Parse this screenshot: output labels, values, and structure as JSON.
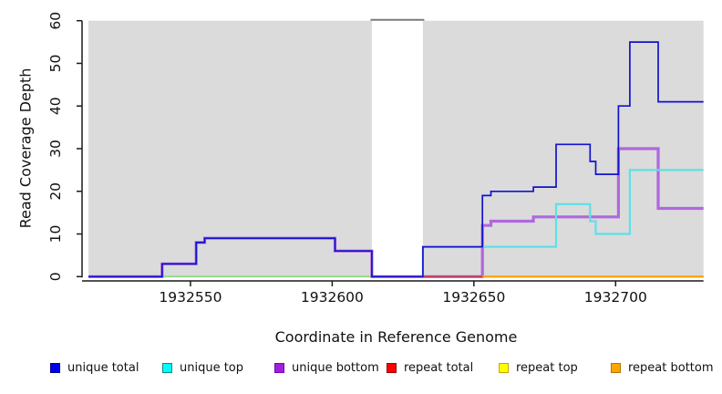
{
  "chart_data": {
    "type": "line",
    "line_style": "step-after",
    "xlabel": "Coordinate in Reference Genome",
    "ylabel": "Read Coverage Depth",
    "xlim": [
      1932514,
      1932731
    ],
    "ylim": [
      0,
      60
    ],
    "xticks": [
      1932550,
      1932600,
      1932650,
      1932700
    ],
    "yticks": [
      0,
      10,
      20,
      30,
      40,
      50,
      60
    ],
    "grid": false,
    "legend_position": "bottom",
    "plot_background": "#dbdbdb",
    "plot_regions": [
      {
        "x0": 1932514,
        "x1": 1932614
      },
      {
        "x0": 1932632,
        "x1": 1932731
      }
    ],
    "masked_region": {
      "x0": 1932614,
      "x1": 1932632,
      "fill": "#ffffff",
      "cap_color": "#7a7a7a"
    },
    "series": [
      {
        "name": "unique total",
        "color": "#1212cd",
        "points": [
          [
            1932514,
            0
          ],
          [
            1932540,
            3
          ],
          [
            1932552,
            8
          ],
          [
            1932555,
            9
          ],
          [
            1932601,
            6
          ],
          [
            1932614,
            0
          ],
          [
            1932632,
            7
          ],
          [
            1932653,
            19
          ],
          [
            1932656,
            20
          ],
          [
            1932671,
            21
          ],
          [
            1932679,
            31
          ],
          [
            1932691,
            27
          ],
          [
            1932693,
            24
          ],
          [
            1932701,
            40
          ],
          [
            1932705,
            55
          ],
          [
            1932715,
            41
          ],
          [
            1932731,
            41
          ]
        ]
      },
      {
        "name": "unique top",
        "color": "#5ee0e6",
        "points": [
          [
            1932514,
            0
          ],
          [
            1932632,
            7
          ],
          [
            1932679,
            17
          ],
          [
            1932691,
            13
          ],
          [
            1932693,
            10
          ],
          [
            1932705,
            25
          ],
          [
            1932731,
            25
          ]
        ]
      },
      {
        "name": "unique bottom",
        "color": "#b167dd",
        "points": [
          [
            1932514,
            0
          ],
          [
            1932540,
            3
          ],
          [
            1932552,
            8
          ],
          [
            1932555,
            9
          ],
          [
            1932601,
            6
          ],
          [
            1932614,
            0
          ],
          [
            1932653,
            12
          ],
          [
            1932656,
            13
          ],
          [
            1932671,
            14
          ],
          [
            1932701,
            30
          ],
          [
            1932715,
            16
          ],
          [
            1932731,
            16
          ]
        ]
      },
      {
        "name": "repeat total",
        "color": "#dd0000",
        "points": [
          [
            1932514,
            0
          ],
          [
            1932731,
            0
          ]
        ]
      },
      {
        "name": "repeat top",
        "color": "#ffff00",
        "points": [
          [
            1932514,
            0
          ],
          [
            1932731,
            0
          ]
        ]
      },
      {
        "name": "repeat bottom",
        "color": "#ff9d00",
        "points": [
          [
            1932514,
            0
          ],
          [
            1932731,
            0
          ]
        ]
      }
    ],
    "render_layers": [
      {
        "kind": "baseline-blend-green",
        "color": "#86d77e",
        "width": 1.6,
        "points": [
          [
            1932514,
            0
          ],
          [
            1932632,
            0
          ]
        ]
      },
      {
        "kind": "steps-unique-bottom",
        "color": "#b167dd",
        "width": 3.2,
        "points": [
          [
            1932514,
            0
          ],
          [
            1932540,
            3
          ],
          [
            1932552,
            8
          ],
          [
            1932555,
            9
          ],
          [
            1932601,
            6
          ],
          [
            1932614,
            0
          ],
          [
            1932653,
            12
          ],
          [
            1932656,
            13
          ],
          [
            1932671,
            14
          ],
          [
            1932701,
            30
          ],
          [
            1932715,
            16
          ],
          [
            1932731,
            16
          ]
        ]
      },
      {
        "kind": "steps-unique-top",
        "color": "#5ee0e6",
        "width": 2.2,
        "points": [
          [
            1932632,
            0
          ],
          [
            1932632,
            7
          ],
          [
            1932679,
            17
          ],
          [
            1932691,
            13
          ],
          [
            1932693,
            10
          ],
          [
            1932705,
            25
          ],
          [
            1932731,
            25
          ]
        ]
      },
      {
        "kind": "baseline-blend-crimson",
        "color": "#c23a52",
        "width": 1.6,
        "points": [
          [
            1932632,
            0
          ],
          [
            1932731,
            0
          ]
        ]
      },
      {
        "kind": "baseline-repeat-bottom",
        "color": "#ff9d00",
        "width": 2.2,
        "points": [
          [
            1932653,
            0
          ],
          [
            1932731,
            0
          ]
        ]
      },
      {
        "kind": "steps-unique-total",
        "color": "#1212cd",
        "width": 1.7,
        "points": [
          [
            1932514,
            0
          ],
          [
            1932540,
            3
          ],
          [
            1932552,
            8
          ],
          [
            1932555,
            9
          ],
          [
            1932601,
            6
          ],
          [
            1932614,
            0
          ],
          [
            1932632,
            7
          ],
          [
            1932653,
            19
          ],
          [
            1932656,
            20
          ],
          [
            1932671,
            21
          ],
          [
            1932679,
            31
          ],
          [
            1932691,
            27
          ],
          [
            1932693,
            24
          ],
          [
            1932701,
            40
          ],
          [
            1932705,
            55
          ],
          [
            1932715,
            41
          ],
          [
            1932731,
            41
          ]
        ]
      }
    ]
  },
  "legend": {
    "items": [
      {
        "label": "unique total",
        "fill": "#0000ee",
        "border": "#000090"
      },
      {
        "label": "unique top",
        "fill": "#00ffff",
        "border": "#008b8b"
      },
      {
        "label": "unique bottom",
        "fill": "#a11fdc",
        "border": "#7a00b0"
      },
      {
        "label": "repeat total",
        "fill": "#ff0000",
        "border": "#990000"
      },
      {
        "label": "repeat top",
        "fill": "#ffff00",
        "border": "#c9a300"
      },
      {
        "label": "repeat bottom",
        "fill": "#ffa500",
        "border": "#b87400"
      }
    ]
  }
}
